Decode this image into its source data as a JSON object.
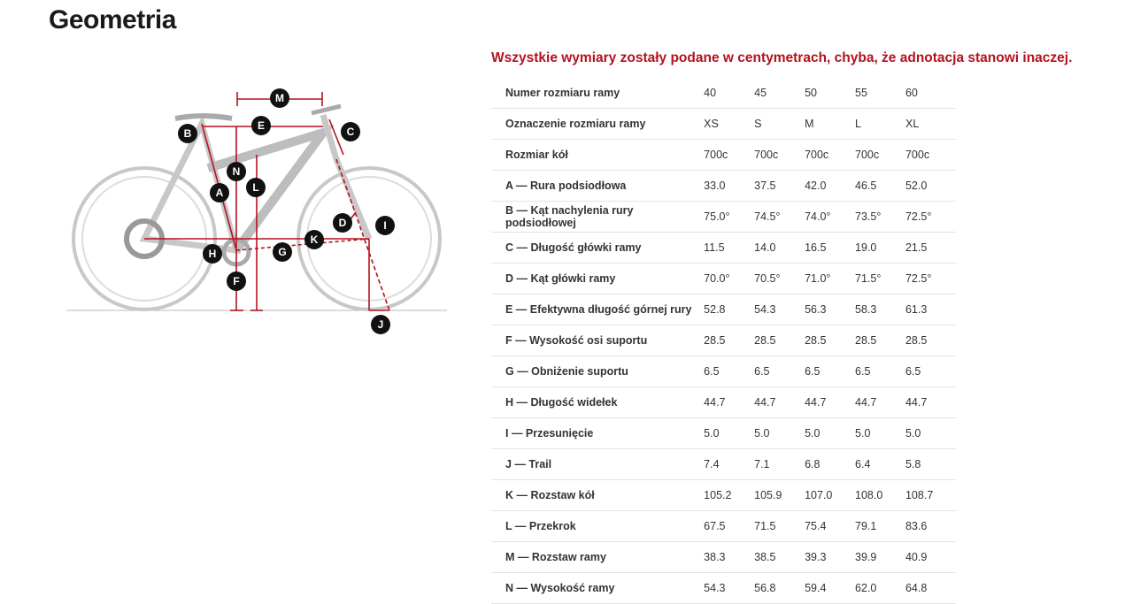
{
  "header": {
    "title": "Geometria"
  },
  "note": "Wszystkie wymiary zostały podane w centymetrach, chyba, że adnotacja stanowi inaczej.",
  "diagram": {
    "labels": [
      "M",
      "E",
      "B",
      "C",
      "N",
      "L",
      "A",
      "D",
      "I",
      "K",
      "H",
      "G",
      "F",
      "J"
    ]
  },
  "table": {
    "rows": [
      [
        "Numer rozmiaru ramy",
        "40",
        "45",
        "50",
        "55",
        "60"
      ],
      [
        "Oznaczenie rozmiaru ramy",
        "XS",
        "S",
        "M",
        "L",
        "XL"
      ],
      [
        "Rozmiar kół",
        "700c",
        "700c",
        "700c",
        "700c",
        "700c"
      ],
      [
        "A — Rura podsiodłowa",
        "33.0",
        "37.5",
        "42.0",
        "46.5",
        "52.0"
      ],
      [
        "B — Kąt nachylenia rury podsiodłowej",
        "75.0°",
        "74.5°",
        "74.0°",
        "73.5°",
        "72.5°"
      ],
      [
        "C — Długość główki ramy",
        "11.5",
        "14.0",
        "16.5",
        "19.0",
        "21.5"
      ],
      [
        "D — Kąt główki ramy",
        "70.0°",
        "70.5°",
        "71.0°",
        "71.5°",
        "72.5°"
      ],
      [
        "E — Efektywna długość górnej rury",
        "52.8",
        "54.3",
        "56.3",
        "58.3",
        "61.3"
      ],
      [
        "F — Wysokość osi suportu",
        "28.5",
        "28.5",
        "28.5",
        "28.5",
        "28.5"
      ],
      [
        "G — Obniżenie suportu",
        "6.5",
        "6.5",
        "6.5",
        "6.5",
        "6.5"
      ],
      [
        "H — Długość widełek",
        "44.7",
        "44.7",
        "44.7",
        "44.7",
        "44.7"
      ],
      [
        "I — Przesunięcie",
        "5.0",
        "5.0",
        "5.0",
        "5.0",
        "5.0"
      ],
      [
        "J — Trail",
        "7.4",
        "7.1",
        "6.8",
        "6.4",
        "5.8"
      ],
      [
        "K — Rozstaw kół",
        "105.2",
        "105.9",
        "107.0",
        "108.0",
        "108.7"
      ],
      [
        "L — Przekrok",
        "67.5",
        "71.5",
        "75.4",
        "79.1",
        "83.6"
      ],
      [
        "M — Rozstaw ramy",
        "38.3",
        "38.5",
        "39.3",
        "39.9",
        "40.9"
      ],
      [
        "N — Wysokość ramy",
        "54.3",
        "56.8",
        "59.4",
        "62.0",
        "64.8"
      ]
    ]
  }
}
